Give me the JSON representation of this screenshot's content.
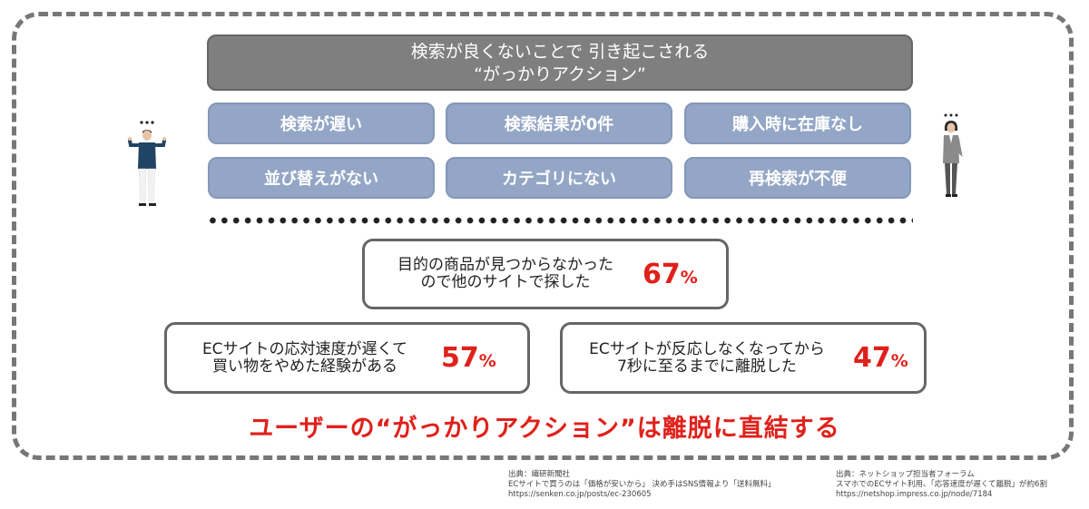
{
  "header": {
    "line1": "検索が良くないことで 引き起こされる",
    "line2": "“がっかりアクション”"
  },
  "actions": [
    "検索が遅い",
    "検索結果が0件",
    "購入時に在庫なし",
    "並び替えがない",
    "カテゴリにない",
    "再検索が不便"
  ],
  "stats": [
    {
      "line1": "目的の商品が見つからなかった",
      "line2": "ので他のサイトで探した",
      "value": "67",
      "unit": "%"
    },
    {
      "line1": "ECサイトの応対速度が遅くて",
      "line2": "買い物をやめた経験がある",
      "value": "57",
      "unit": "%"
    },
    {
      "line1": "ECサイトが反応しなくなってから",
      "line2": "7秒に至るまでに離脱した",
      "value": "47",
      "unit": "%"
    }
  ],
  "conclusion": "ユーザーの“がっかりアクション”は離脱に直結する",
  "sources": [
    {
      "line1": "出典：繊研新聞社",
      "line2": "ECサイトで買うのは「価格が安いから」 決め手はSNS情報より「送料無料」",
      "line3": "https://senken.co.jp/posts/ec-230605"
    },
    {
      "line1": "出典：ネットショップ担当者フォーラム",
      "line2": "スマホでのECサイト利用、「応答速度が遅くて離脱」が約6割",
      "line3": "https://netshop.impress.co.jp/node/7184"
    }
  ],
  "colors": {
    "accent_red": "#e0211b",
    "action_blue": "#94a6c6",
    "header_gray": "#7f7f7f"
  },
  "icons": [
    "confused-man-icon",
    "confused-woman-icon"
  ]
}
